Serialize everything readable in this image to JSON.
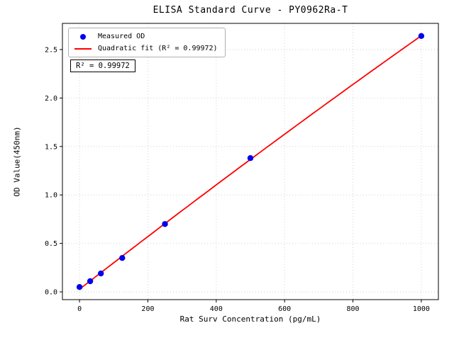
{
  "chart_data": {
    "type": "scatter",
    "title": "ELISA Standard Curve - PY0962Ra-T",
    "xlabel": "Rat Surv Concentration (pg/mL)",
    "ylabel": "OD Value(450nm)",
    "xticks": [
      0,
      200,
      400,
      600,
      800,
      1000
    ],
    "yticks": [
      0.0,
      0.5,
      1.0,
      1.5,
      2.0,
      2.5
    ],
    "xlim": [
      -50,
      1050
    ],
    "ylim": [
      -0.08,
      2.77
    ],
    "grid": true,
    "grid_style": "dotted",
    "series": [
      {
        "name": "Measured OD",
        "type": "scatter",
        "color": "#0000ee",
        "x": [
          0,
          31.2,
          62.5,
          125,
          250,
          500,
          1000
        ],
        "y": [
          0.05,
          0.11,
          0.19,
          0.35,
          0.7,
          1.38,
          2.64
        ]
      },
      {
        "name": "Quadratic fit (R² = 0.99972)",
        "type": "line",
        "fit": "quadratic",
        "color": "#ff0000",
        "r_squared": 0.99972
      }
    ],
    "legend": {
      "position": "upper-left",
      "items": [
        {
          "label": "Measured OD",
          "marker": "dot",
          "color": "#0000ee"
        },
        {
          "label": "Quadratic fit (R² = 0.99972)",
          "marker": "line",
          "color": "#ff0000"
        }
      ]
    },
    "annotation": "R² = 0.99972"
  }
}
